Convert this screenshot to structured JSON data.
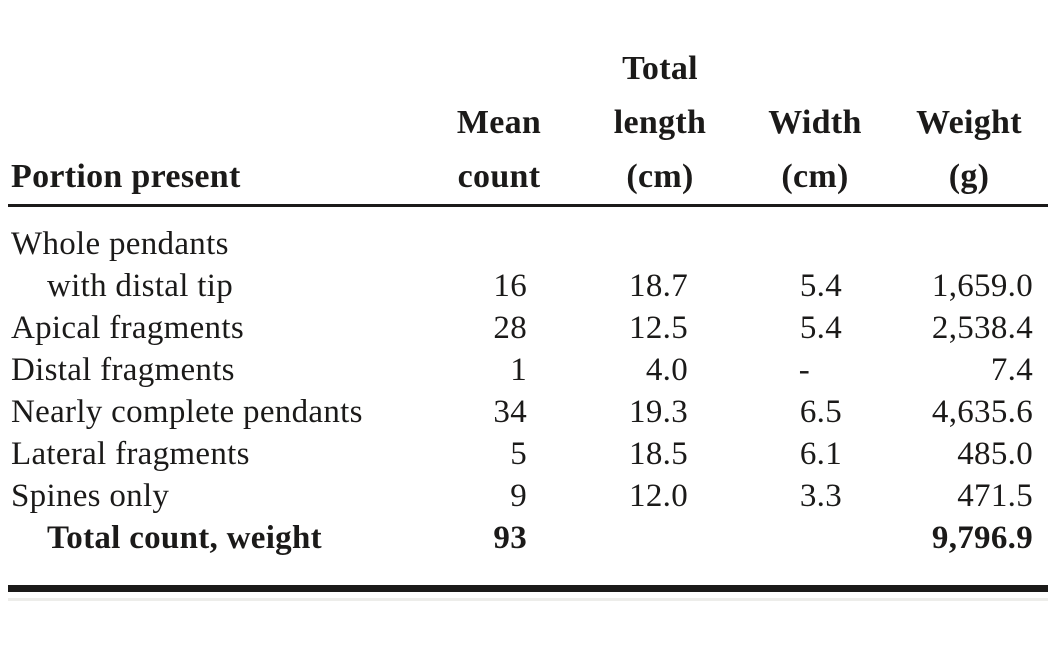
{
  "colors": {
    "text": "#1b1a19",
    "rule": "#1b1a19",
    "background": "#ffffff"
  },
  "table": {
    "missing_marker": "-",
    "headers": {
      "portion": "Portion present",
      "mean_count": "Mean\ncount",
      "total_length": "Total\nlength\n(cm)",
      "width": "Width\n(cm)",
      "weight": "Weight\n(g)"
    },
    "rows": [
      {
        "label": "Whole pendants",
        "indent": false,
        "bold": false,
        "values": [
          "",
          "",
          "",
          ""
        ]
      },
      {
        "label": "with distal tip",
        "indent": true,
        "bold": false,
        "values": [
          "16",
          "18.7",
          "5.4",
          "1,659.0"
        ]
      },
      {
        "label": "Apical fragments",
        "indent": false,
        "bold": false,
        "values": [
          "28",
          "12.5",
          "5.4",
          "2,538.4"
        ]
      },
      {
        "label": "Distal fragments",
        "indent": false,
        "bold": false,
        "values": [
          "1",
          "4.0",
          "-",
          "7.4"
        ]
      },
      {
        "label": "Nearly complete pendants",
        "indent": false,
        "bold": false,
        "values": [
          "34",
          "19.3",
          "6.5",
          "4,635.6"
        ]
      },
      {
        "label": "Lateral fragments",
        "indent": false,
        "bold": false,
        "values": [
          "5",
          "18.5",
          "6.1",
          "485.0"
        ]
      },
      {
        "label": "Spines only",
        "indent": false,
        "bold": false,
        "values": [
          "9",
          "12.0",
          "3.3",
          "471.5"
        ]
      },
      {
        "label": "Total count, weight",
        "indent": true,
        "bold": true,
        "values": [
          "93",
          "",
          "",
          "9,796.9"
        ]
      }
    ]
  },
  "chart_data": {
    "type": "table",
    "title": "",
    "columns": [
      "Portion present",
      "Mean count",
      "Total length (cm)",
      "Width (cm)",
      "Weight (g)"
    ],
    "rows": [
      [
        "Whole pendants with distal tip",
        16,
        18.7,
        5.4,
        1659.0
      ],
      [
        "Apical fragments",
        28,
        12.5,
        5.4,
        2538.4
      ],
      [
        "Distal fragments",
        1,
        4.0,
        null,
        7.4
      ],
      [
        "Nearly complete pendants",
        34,
        19.3,
        6.5,
        4635.6
      ],
      [
        "Lateral fragments",
        5,
        18.5,
        6.1,
        485.0
      ],
      [
        "Spines only",
        9,
        12.0,
        3.3,
        471.5
      ],
      [
        "Total count, weight",
        93,
        null,
        null,
        9796.9
      ]
    ]
  }
}
